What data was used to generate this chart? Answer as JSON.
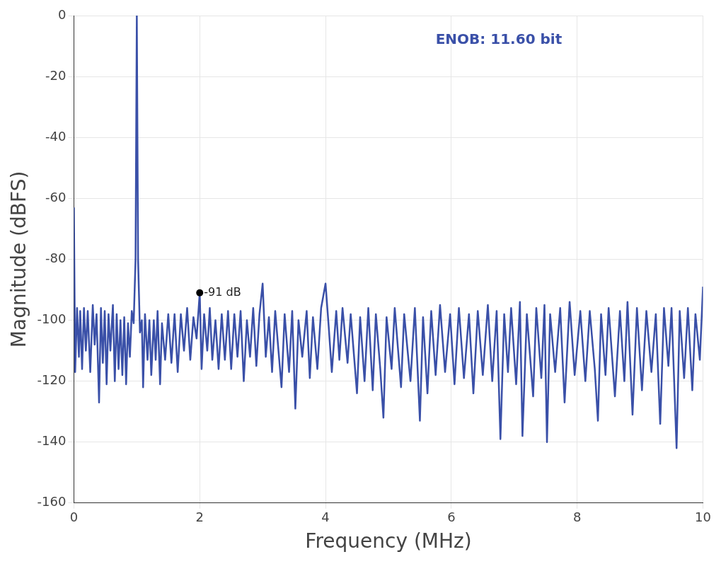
{
  "chart_data": {
    "type": "line",
    "xlabel": "Frequency (MHz)",
    "ylabel": "Magnitude (dBFS)",
    "xlim": [
      0,
      10
    ],
    "xticks": [
      0,
      2,
      4,
      6,
      8,
      10
    ],
    "ylim": [
      -160,
      0
    ],
    "yticks": [
      -160,
      -140,
      -120,
      -100,
      -80,
      -60,
      -40,
      -20,
      0
    ],
    "grid": true,
    "legend": false,
    "annotations": [
      "ENOB: 11.60 bit",
      {
        "text": "-91 dB",
        "x": 2,
        "y": -91
      }
    ],
    "series": [
      {
        "color": "#3a50a8",
        "x": [
          0,
          0.02,
          0.05,
          0.08,
          0.1,
          0.13,
          0.16,
          0.19,
          0.22,
          0.26,
          0.3,
          0.33,
          0.36,
          0.4,
          0.43,
          0.46,
          0.49,
          0.52,
          0.55,
          0.58,
          0.62,
          0.65,
          0.68,
          0.71,
          0.74,
          0.77,
          0.8,
          0.83,
          0.86,
          0.89,
          0.92,
          0.95,
          0.98,
          1.0,
          1.02,
          1.05,
          1.08,
          1.1,
          1.13,
          1.17,
          1.2,
          1.23,
          1.27,
          1.3,
          1.33,
          1.37,
          1.4,
          1.45,
          1.5,
          1.55,
          1.6,
          1.65,
          1.7,
          1.75,
          1.8,
          1.85,
          1.9,
          1.95,
          2.0,
          2.03,
          2.07,
          2.12,
          2.16,
          2.2,
          2.25,
          2.3,
          2.35,
          2.4,
          2.45,
          2.5,
          2.55,
          2.6,
          2.65,
          2.7,
          2.75,
          2.8,
          2.85,
          2.9,
          2.95,
          3.0,
          3.05,
          3.1,
          3.15,
          3.2,
          3.3,
          3.35,
          3.42,
          3.47,
          3.52,
          3.57,
          3.63,
          3.7,
          3.75,
          3.8,
          3.87,
          3.93,
          4.0,
          4.05,
          4.1,
          4.17,
          4.22,
          4.27,
          4.35,
          4.4,
          4.5,
          4.55,
          4.62,
          4.68,
          4.75,
          4.8,
          4.87,
          4.92,
          4.97,
          5.05,
          5.1,
          5.2,
          5.25,
          5.35,
          5.42,
          5.5,
          5.55,
          5.62,
          5.68,
          5.75,
          5.82,
          5.9,
          5.98,
          6.05,
          6.12,
          6.2,
          6.28,
          6.35,
          6.42,
          6.5,
          6.58,
          6.65,
          6.72,
          6.78,
          6.84,
          6.9,
          6.95,
          7.03,
          7.09,
          7.13,
          7.2,
          7.3,
          7.35,
          7.43,
          7.48,
          7.52,
          7.57,
          7.65,
          7.73,
          7.8,
          7.88,
          7.96,
          8.05,
          8.13,
          8.2,
          8.28,
          8.33,
          8.38,
          8.45,
          8.5,
          8.6,
          8.68,
          8.75,
          8.8,
          8.88,
          8.95,
          9.03,
          9.1,
          9.18,
          9.25,
          9.32,
          9.38,
          9.45,
          9.5,
          9.58,
          9.63,
          9.7,
          9.76,
          9.83,
          9.88,
          9.95,
          10
        ],
        "values": [
          -63,
          -117,
          -96,
          -112,
          -97,
          -116,
          -96,
          -110,
          -97,
          -117,
          -95,
          -108,
          -98,
          -127,
          -96,
          -114,
          -97,
          -121,
          -98,
          -110,
          -95,
          -120,
          -98,
          -116,
          -100,
          -118,
          -99,
          -121,
          -101,
          -112,
          -97,
          -101,
          -80,
          0,
          -80,
          -104,
          -100,
          -122,
          -98,
          -113,
          -100,
          -118,
          -100,
          -113,
          -97,
          -121,
          -101,
          -113,
          -98,
          -114,
          -98,
          -117,
          -98,
          -110,
          -96,
          -113,
          -99,
          -106,
          -91,
          -116,
          -98,
          -110,
          -96,
          -113,
          -100,
          -116,
          -98,
          -113,
          -97,
          -116,
          -98,
          -112,
          -97,
          -120,
          -100,
          -112,
          -96,
          -115,
          -98,
          -88,
          -112,
          -99,
          -117,
          -97,
          -122,
          -98,
          -117,
          -97,
          -129,
          -100,
          -112,
          -97,
          -119,
          -99,
          -116,
          -96,
          -88,
          -102,
          -117,
          -97,
          -113,
          -96,
          -114,
          -98,
          -124,
          -99,
          -120,
          -96,
          -123,
          -98,
          -116,
          -132,
          -99,
          -116,
          -96,
          -122,
          -98,
          -120,
          -96,
          -133,
          -99,
          -124,
          -97,
          -118,
          -95,
          -117,
          -98,
          -121,
          -96,
          -119,
          -98,
          -124,
          -97,
          -118,
          -95,
          -120,
          -97,
          -139,
          -98,
          -117,
          -96,
          -121,
          -94,
          -138,
          -98,
          -125,
          -96,
          -119,
          -95,
          -140,
          -98,
          -117,
          -96,
          -127,
          -94,
          -118,
          -97,
          -120,
          -97,
          -116,
          -133,
          -98,
          -118,
          -96,
          -125,
          -97,
          -120,
          -94,
          -131,
          -96,
          -123,
          -97,
          -117,
          -98,
          -134,
          -96,
          -115,
          -96,
          -142,
          -97,
          -119,
          -96,
          -123,
          -98,
          -113,
          -89
        ]
      }
    ]
  }
}
